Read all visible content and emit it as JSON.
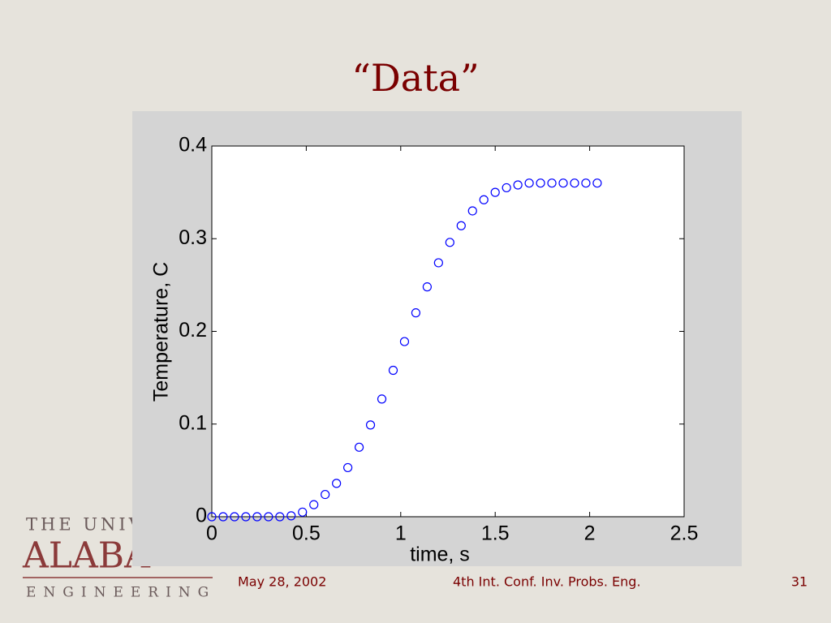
{
  "slide": {
    "title": "“Data”",
    "footer_date": "May 28, 2002",
    "footer_event": "4th Int. Conf. Inv. Probs. Eng.",
    "page_number": "31",
    "logo_line1": "THE UNIVE",
    "logo_line2": "ALABA",
    "logo_line3": "ENGINEERING"
  },
  "chart_data": {
    "type": "scatter",
    "xlabel": "time, s",
    "ylabel": "Temperature, C",
    "color": "#0000ff",
    "marker": "circle",
    "x": [
      0,
      0.06,
      0.12,
      0.18,
      0.24,
      0.3,
      0.36,
      0.42,
      0.48,
      0.54,
      0.6,
      0.66,
      0.72,
      0.78,
      0.84,
      0.9,
      0.96,
      1.02,
      1.08,
      1.14,
      1.2,
      1.26,
      1.32,
      1.38,
      1.44,
      1.5,
      1.56,
      1.62,
      1.68,
      1.74,
      1.8,
      1.86,
      1.92,
      1.98,
      2.04
    ],
    "values": [
      0,
      0,
      0,
      0,
      0,
      0,
      0,
      0.001,
      0.005,
      0.013,
      0.024,
      0.036,
      0.053,
      0.075,
      0.099,
      0.127,
      0.158,
      0.189,
      0.22,
      0.248,
      0.274,
      0.296,
      0.314,
      0.33,
      0.342,
      0.35,
      0.355,
      0.358,
      0.36,
      0.36,
      0.36,
      0.36,
      0.36,
      0.36,
      0.36
    ],
    "xlim": [
      0,
      2.5
    ],
    "xticks": [
      0,
      0.5,
      1,
      1.5,
      2,
      2.5
    ],
    "ylim": [
      0,
      0.4
    ],
    "yticks": [
      0,
      0.1,
      0.2,
      0.3,
      0.4
    ],
    "grid": false
  }
}
